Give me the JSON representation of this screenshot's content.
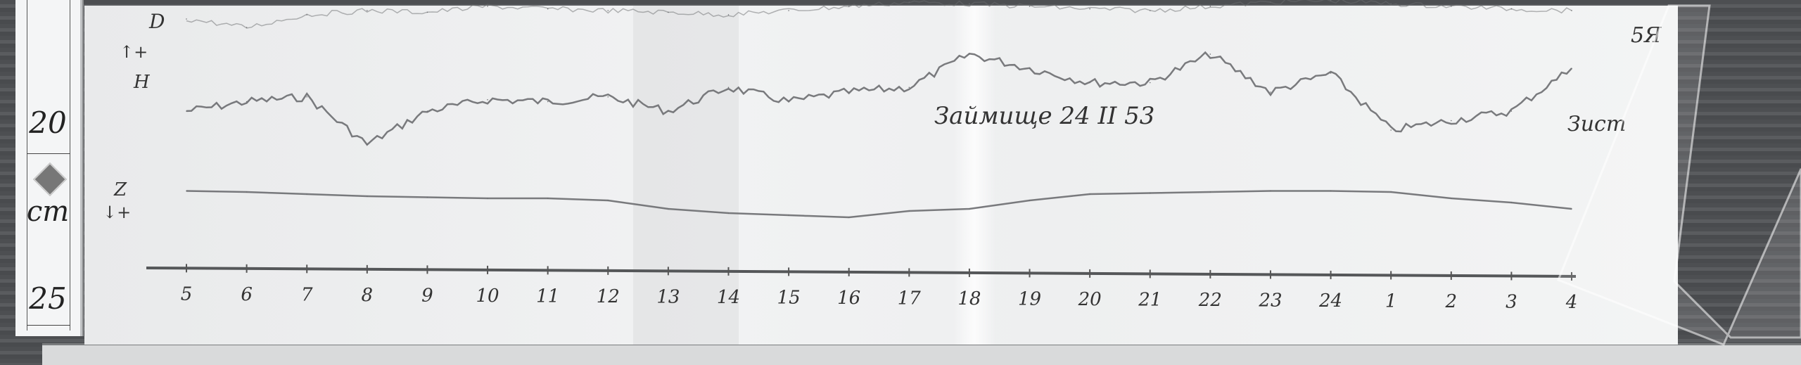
{
  "ruler": {
    "top_label": "20",
    "unit_label": "cm",
    "bottom_label": "25"
  },
  "annotations": {
    "station_date": "Займище 24 II 53",
    "right_note": "Зист",
    "corner_number": "5Я",
    "d_label": "D",
    "h_label": "H",
    "z_label": "Z",
    "h_arrow": "↑+",
    "z_arrow": "↓+"
  },
  "colors": {
    "trace": "#6b6d70",
    "baseline": "#555759",
    "paper": "#eeeff0"
  },
  "chart_data": {
    "type": "line",
    "title": "Займище 24 II 53",
    "xlabel": "",
    "ylabel": "",
    "grid": false,
    "categories": [
      "5",
      "6",
      "7",
      "8",
      "9",
      "10",
      "11",
      "12",
      "13",
      "14",
      "15",
      "16",
      "17",
      "18",
      "19",
      "20",
      "21",
      "22",
      "23",
      "24",
      "1",
      "2",
      "3",
      "4"
    ],
    "series": [
      {
        "name": "H",
        "values": [
          40,
          50,
          55,
          5,
          40,
          52,
          50,
          55,
          40,
          65,
          50,
          60,
          65,
          100,
          85,
          70,
          70,
          100,
          60,
          80,
          20,
          30,
          40,
          85
        ]
      },
      {
        "name": "Z",
        "values": [
          37,
          36,
          34,
          32,
          31,
          30,
          30,
          28,
          20,
          16,
          14,
          12,
          18,
          20,
          28,
          34,
          35,
          36,
          37,
          37,
          36,
          30,
          26,
          20
        ]
      },
      {
        "name": "D",
        "values": [
          40,
          30,
          45,
          50,
          48,
          55,
          52,
          50,
          48,
          45,
          50,
          55,
          60,
          58,
          55,
          52,
          50,
          55,
          60,
          62,
          58,
          55,
          52,
          50
        ]
      }
    ]
  }
}
